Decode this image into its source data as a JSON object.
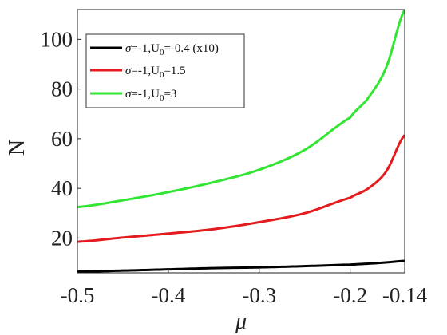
{
  "chart_data": {
    "type": "line",
    "title": "",
    "xlabel": "μ",
    "ylabel": "N",
    "xlim": [
      -0.5,
      -0.14
    ],
    "ylim": [
      6,
      112
    ],
    "xticks": [
      -0.5,
      -0.4,
      -0.3,
      -0.2,
      -0.14
    ],
    "xtick_labels": [
      "-0.5",
      "-0.4",
      "-0.3",
      "-0.2",
      "-0.14"
    ],
    "yticks": [
      20,
      40,
      60,
      80,
      100
    ],
    "ytick_labels": [
      "20",
      "40",
      "60",
      "80",
      "100"
    ],
    "grid": false,
    "legend_position": "top-left",
    "x": [
      -0.5,
      -0.45,
      -0.4,
      -0.35,
      -0.3,
      -0.25,
      -0.2,
      -0.18,
      -0.16,
      -0.14
    ],
    "series": [
      {
        "name_parts": {
          "sigma": "σ",
          "rest1": "=-1,U",
          "sub": "0",
          "rest2": "=-0.4 (x10)"
        },
        "color": "#000000",
        "values": [
          6.5,
          6.9,
          7.4,
          7.9,
          8.2,
          8.7,
          9.3,
          9.7,
          10.2,
          10.8
        ]
      },
      {
        "name_parts": {
          "sigma": "σ",
          "rest1": "=-1,U",
          "sub": "0",
          "rest2": "=1.5"
        },
        "color": "#e41a1c",
        "values": [
          18.5,
          20.2,
          21.8,
          23.6,
          26.4,
          30.0,
          36.2,
          40.0,
          47.0,
          61.5
        ]
      },
      {
        "name_parts": {
          "sigma": "σ",
          "rest1": "=-1,U",
          "sub": "0",
          "rest2": "=3"
        },
        "color": "#33e533",
        "values": [
          32.5,
          35.2,
          38.5,
          42.5,
          47.5,
          55.5,
          68.5,
          76.5,
          89.0,
          112.0
        ]
      }
    ]
  }
}
